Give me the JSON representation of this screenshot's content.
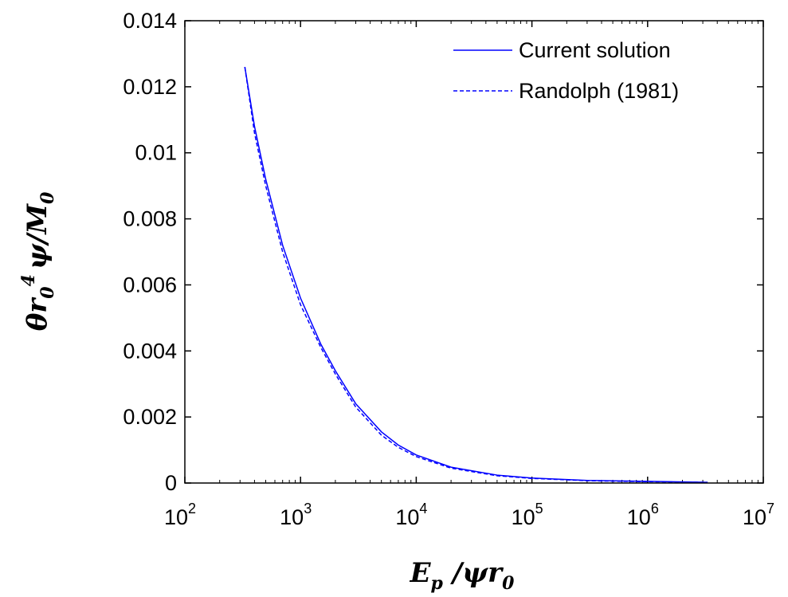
{
  "chart_data": {
    "type": "line",
    "xlabel": {
      "main": "E",
      "main_sub": "p",
      "rest": " /ψr",
      "rest_sub": "0"
    },
    "ylabel": {
      "main": "θr",
      "main_sub": "0",
      "sup": "4",
      "rest": "ψ/M",
      "rest_sub": "0"
    },
    "x_scale": "log",
    "xlim": [
      100,
      10000000
    ],
    "ylim": [
      0,
      0.014
    ],
    "x_ticks": [
      {
        "base": "10",
        "exp": "2",
        "value": 100
      },
      {
        "base": "10",
        "exp": "3",
        "value": 1000
      },
      {
        "base": "10",
        "exp": "4",
        "value": 10000
      },
      {
        "base": "10",
        "exp": "5",
        "value": 100000
      },
      {
        "base": "10",
        "exp": "6",
        "value": 1000000
      },
      {
        "base": "10",
        "exp": "7",
        "value": 10000000
      }
    ],
    "y_ticks": [
      {
        "label": "0",
        "value": 0
      },
      {
        "label": "0.002",
        "value": 0.002
      },
      {
        "label": "0.004",
        "value": 0.004
      },
      {
        "label": "0.006",
        "value": 0.006
      },
      {
        "label": "0.008",
        "value": 0.008
      },
      {
        "label": "0.01",
        "value": 0.01
      },
      {
        "label": "0.012",
        "value": 0.012
      },
      {
        "label": "0.014",
        "value": 0.014
      }
    ],
    "grid": false,
    "legend_position": "top-right",
    "series": [
      {
        "name": "Current solution",
        "style": "solid",
        "color": "#0000ff",
        "points": [
          [
            330,
            0.0126
          ],
          [
            400,
            0.0108
          ],
          [
            500,
            0.0092
          ],
          [
            700,
            0.0072
          ],
          [
            1000,
            0.0056
          ],
          [
            1500,
            0.0042
          ],
          [
            2000,
            0.0034
          ],
          [
            3000,
            0.0024
          ],
          [
            5000,
            0.00155
          ],
          [
            7000,
            0.00115
          ],
          [
            10000,
            0.00085
          ],
          [
            20000,
            0.00048
          ],
          [
            50000,
            0.00024
          ],
          [
            100000,
            0.00015
          ],
          [
            300000,
            8e-05
          ],
          [
            1000000,
            5e-05
          ],
          [
            3300000,
            2e-05
          ]
        ]
      },
      {
        "name": "Randolph (1981)",
        "style": "dashed",
        "color": "#0000ff",
        "points": [
          [
            330,
            0.0126
          ],
          [
            400,
            0.0106
          ],
          [
            500,
            0.009
          ],
          [
            700,
            0.007
          ],
          [
            1000,
            0.0054
          ],
          [
            1500,
            0.0041
          ],
          [
            2000,
            0.0033
          ],
          [
            3000,
            0.0023
          ],
          [
            5000,
            0.00145
          ],
          [
            7000,
            0.00108
          ],
          [
            10000,
            0.0008
          ],
          [
            20000,
            0.00045
          ],
          [
            50000,
            0.00022
          ],
          [
            100000,
            0.00014
          ],
          [
            300000,
            7e-05
          ],
          [
            1000000,
            4e-05
          ],
          [
            3300000,
            2e-05
          ]
        ]
      }
    ]
  }
}
